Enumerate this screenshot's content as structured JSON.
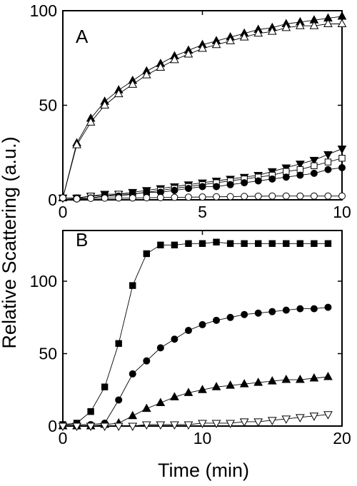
{
  "figure": {
    "ylabel": "Relative Scattering (a.u.)",
    "xlabel": "Time (min)"
  },
  "chart_data": [
    {
      "type": "line",
      "panel_label": "A",
      "xlim": [
        0,
        10
      ],
      "ylim": [
        0,
        100
      ],
      "xticks": [
        0,
        5,
        10
      ],
      "yticks": [
        0,
        50,
        100
      ],
      "grid": false,
      "series": [
        {
          "marker": "triangle-up-filled",
          "x": [
            0,
            0.5,
            1,
            1.5,
            2,
            2.5,
            3,
            3.5,
            4,
            4.5,
            5,
            5.5,
            6,
            6.5,
            7,
            7.5,
            8,
            8.5,
            9,
            9.5,
            10
          ],
          "y": [
            1,
            30,
            43,
            52,
            58,
            63,
            68,
            72,
            76,
            79,
            82,
            84,
            86,
            88,
            90,
            91,
            93,
            94,
            95,
            96,
            97
          ]
        },
        {
          "marker": "triangle-up-open",
          "x": [
            0,
            0.5,
            1,
            1.5,
            2,
            2.5,
            3,
            3.5,
            4,
            4.5,
            5,
            5.5,
            6,
            6.5,
            7,
            7.5,
            8,
            8.5,
            9,
            9.5,
            10
          ],
          "y": [
            1,
            29,
            41,
            50,
            56,
            61,
            66,
            70,
            74,
            77,
            80,
            82,
            84,
            86,
            88,
            89,
            91,
            92,
            92,
            93,
            93
          ]
        },
        {
          "marker": "triangle-down-filled",
          "x": [
            0,
            0.5,
            1,
            1.5,
            2,
            2.5,
            3,
            3.5,
            4,
            4.5,
            5,
            5.5,
            6,
            6.5,
            7,
            7.5,
            8,
            8.5,
            9,
            9.5,
            10
          ],
          "y": [
            1,
            1,
            2,
            3,
            3,
            4,
            5,
            6,
            7,
            8,
            9,
            10,
            11,
            12,
            13,
            15,
            17,
            19,
            21,
            24,
            27
          ]
        },
        {
          "marker": "square-open",
          "x": [
            0,
            0.5,
            1,
            1.5,
            2,
            2.5,
            3,
            3.5,
            4,
            4.5,
            5,
            5.5,
            6,
            6.5,
            7,
            7.5,
            8,
            8.5,
            9,
            9.5,
            10
          ],
          "y": [
            1,
            1,
            2,
            2,
            3,
            3,
            4,
            5,
            6,
            7,
            8,
            9,
            10,
            11,
            12,
            13,
            15,
            16,
            18,
            20,
            22
          ]
        },
        {
          "marker": "circle-filled",
          "x": [
            0,
            0.5,
            1,
            1.5,
            2,
            2.5,
            3,
            3.5,
            4,
            4.5,
            5,
            5.5,
            6,
            6.5,
            7,
            7.5,
            8,
            8.5,
            9,
            9.5,
            10
          ],
          "y": [
            1,
            1,
            1,
            2,
            2,
            3,
            4,
            4,
            5,
            6,
            7,
            7,
            8,
            9,
            10,
            11,
            12,
            13,
            14,
            16,
            17
          ]
        },
        {
          "marker": "circle-open",
          "x": [
            0,
            0.5,
            1,
            1.5,
            2,
            2.5,
            3,
            3.5,
            4,
            4.5,
            5,
            5.5,
            6,
            6.5,
            7,
            7.5,
            8,
            8.5,
            9,
            9.5,
            10
          ],
          "y": [
            1,
            0.5,
            0.8,
            0.9,
            1,
            1,
            1.1,
            1.2,
            1.3,
            1.4,
            1.5,
            1.6,
            1.7,
            1.8,
            1.9,
            2,
            2,
            2,
            2,
            2,
            2
          ]
        }
      ]
    },
    {
      "type": "line",
      "panel_label": "B",
      "xlim": [
        0,
        20
      ],
      "ylim": [
        0,
        135
      ],
      "xticks": [
        0,
        10,
        20
      ],
      "yticks": [
        0,
        50,
        100
      ],
      "grid": false,
      "series": [
        {
          "marker": "square-filled",
          "x": [
            0,
            1,
            2,
            3,
            4,
            5,
            6,
            7,
            8,
            9,
            10,
            11,
            12,
            13,
            14,
            15,
            16,
            17,
            18,
            19
          ],
          "y": [
            1,
            2,
            10,
            27,
            57,
            97,
            119,
            125,
            125,
            126,
            126,
            127,
            126,
            126,
            126,
            126,
            126,
            126,
            126,
            126
          ]
        },
        {
          "marker": "circle-filled",
          "x": [
            0,
            1,
            2,
            3,
            4,
            5,
            6,
            7,
            8,
            9,
            10,
            11,
            12,
            13,
            14,
            15,
            16,
            17,
            18,
            19
          ],
          "y": [
            1,
            1,
            1,
            2,
            18,
            36,
            45,
            54,
            60,
            66,
            70,
            73,
            75,
            77,
            78,
            79,
            80,
            81,
            81,
            82
          ]
        },
        {
          "marker": "triangle-up-filled",
          "x": [
            0,
            1,
            2,
            3,
            4,
            5,
            6,
            7,
            8,
            9,
            10,
            11,
            12,
            13,
            14,
            15,
            16,
            17,
            18,
            19
          ],
          "y": [
            0,
            0,
            0,
            1,
            2,
            7,
            12,
            16,
            20,
            23,
            25,
            27,
            28,
            29,
            30,
            31,
            32,
            32,
            33,
            34
          ]
        },
        {
          "marker": "triangle-down-open",
          "x": [
            0,
            1,
            2,
            3,
            4,
            5,
            6,
            7,
            8,
            9,
            10,
            11,
            12,
            13,
            14,
            15,
            16,
            17,
            18,
            19
          ],
          "y": [
            0,
            0,
            0,
            0,
            0,
            0,
            1,
            1,
            1,
            1,
            2,
            2,
            2,
            3,
            3,
            4,
            5,
            6,
            7,
            8
          ]
        }
      ]
    }
  ]
}
